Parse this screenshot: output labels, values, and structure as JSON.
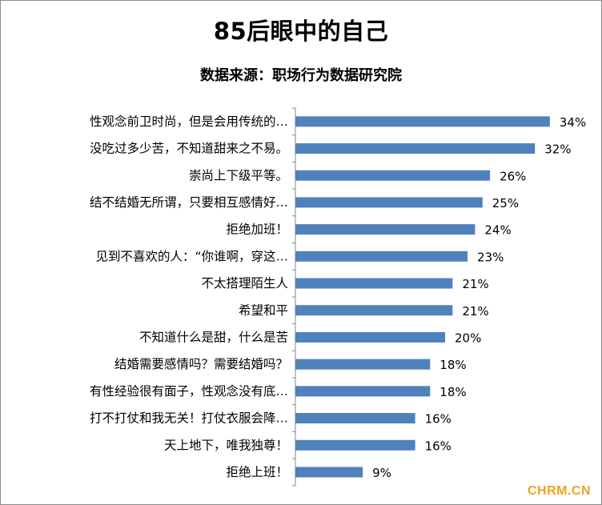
{
  "chart_data": {
    "type": "bar",
    "orientation": "horizontal",
    "title": "85后眼中的自己",
    "subtitle": "数据来源：职场行为数据研究院",
    "categories": [
      "性观念前卫时尚，但是会用传统的…",
      "没吃过多少苦，不知道甜来之不易。",
      "崇尚上下级平等。",
      "结不结婚无所谓，只要相互感情好…",
      "拒绝加班！",
      "见到不喜欢的人：“你谁啊，穿这…",
      "不太搭理陌生人",
      "希望和平",
      "不知道什么是甜，什么是苦",
      "结婚需要感情吗？需要结婚吗？",
      "有性经验很有面子，性观念没有底…",
      "打不打仗和我无关！打仗衣服会降…",
      "天上地下，唯我独尊！",
      "拒绝上班！"
    ],
    "values": [
      34,
      32,
      26,
      25,
      24,
      23,
      21,
      21,
      20,
      18,
      18,
      16,
      16,
      9
    ],
    "value_labels": [
      "34%",
      "32%",
      "26%",
      "25%",
      "24%",
      "23%",
      "21%",
      "21%",
      "20%",
      "18%",
      "18%",
      "16%",
      "16%",
      "9%"
    ],
    "unit": "%",
    "xlim": [
      0,
      40
    ],
    "bar_color": "#4f81bd",
    "grid": false,
    "legend": "none"
  },
  "watermark": "CHRM.CN",
  "colors": {
    "bar": "#4f81bd",
    "axis": "#868686",
    "watermark": "#f0a020"
  }
}
